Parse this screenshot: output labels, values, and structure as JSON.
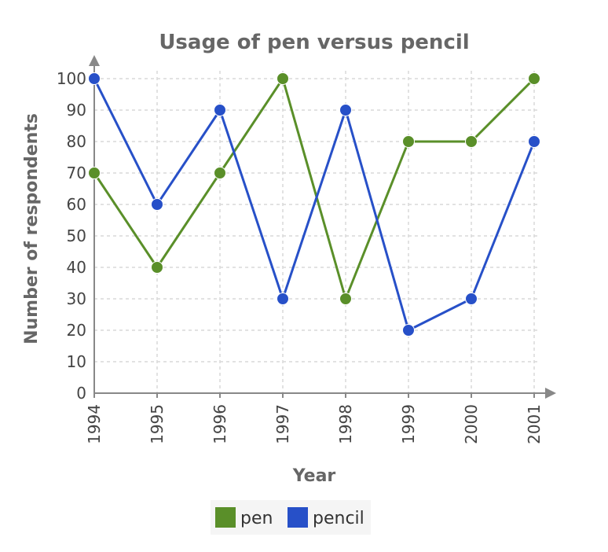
{
  "chart_data": {
    "type": "line",
    "title": "Usage of pen versus pencil",
    "xlabel": "Year",
    "ylabel": "Number of respondents",
    "categories": [
      "1994",
      "1995",
      "1996",
      "1997",
      "1998",
      "1999",
      "2000",
      "2001"
    ],
    "y_ticks": [
      "0",
      "10",
      "20",
      "30",
      "40",
      "50",
      "60",
      "70",
      "80",
      "90",
      "100"
    ],
    "ylim": [
      0,
      100
    ],
    "grid": true,
    "legend_position": "bottom",
    "series": [
      {
        "name": "pen",
        "color": "#5a8f29",
        "values": [
          70,
          40,
          70,
          100,
          30,
          80,
          80,
          100
        ]
      },
      {
        "name": "pencil",
        "color": "#2750c8",
        "values": [
          100,
          60,
          90,
          30,
          90,
          20,
          30,
          80
        ]
      }
    ]
  }
}
